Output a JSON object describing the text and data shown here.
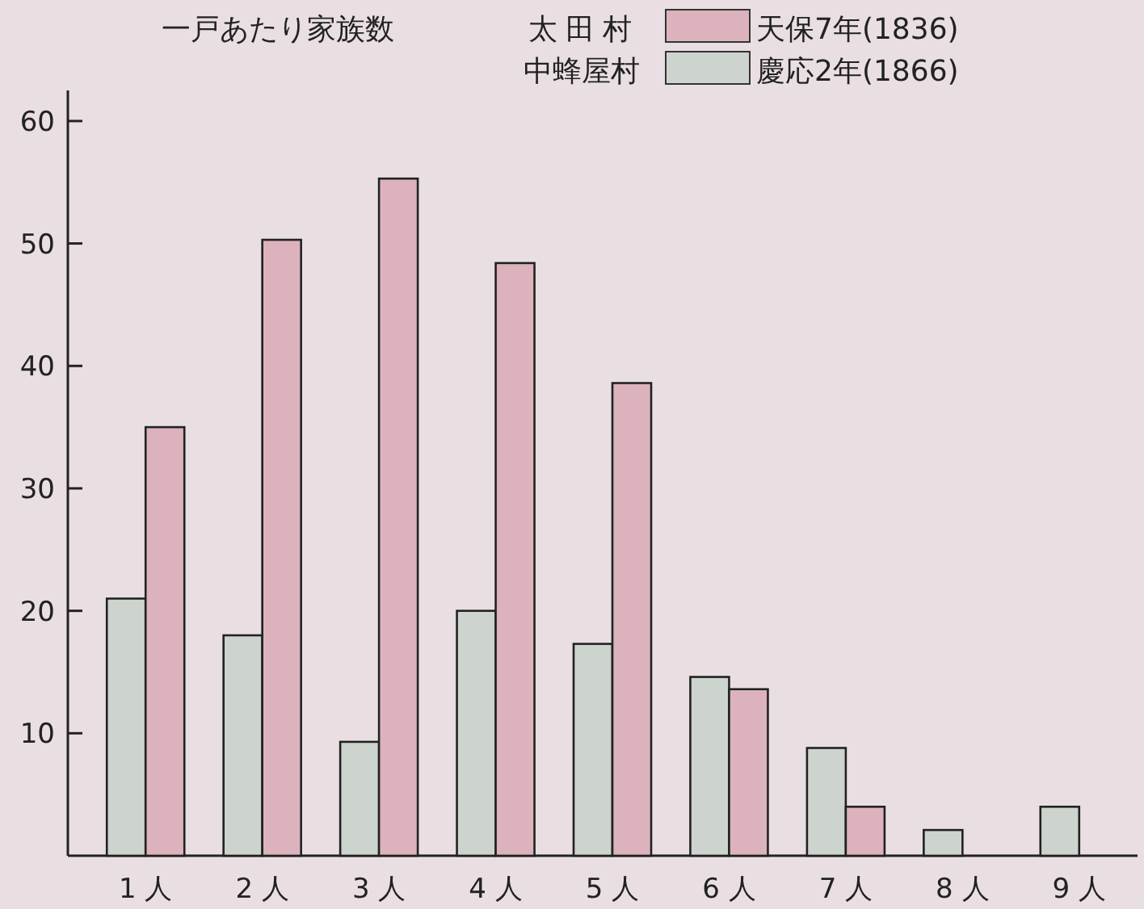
{
  "chart_data": {
    "type": "bar",
    "title": "一戸あたり家族数",
    "categories": [
      "1 人",
      "2 人",
      "3 人",
      "4 人",
      "5 人",
      "6 人",
      "7 人",
      "8 人",
      "9 人"
    ],
    "series": [
      {
        "name": "慶応2年(1866)",
        "color": "#cdd3cd",
        "values": [
          21,
          18,
          9.3,
          20,
          17.3,
          14.6,
          8.8,
          2.1,
          4
        ]
      },
      {
        "name": "天保7年(1836)",
        "color": "#dcb3bd",
        "values": [
          35,
          50.3,
          55.3,
          48.4,
          38.6,
          13.6,
          4,
          null,
          null
        ]
      }
    ],
    "annotations": [
      "太田村",
      "中蜂屋村"
    ],
    "ylim": [
      0,
      62.5
    ],
    "yticks": [
      10,
      20,
      30,
      40,
      50,
      60
    ],
    "legend": "top right"
  }
}
